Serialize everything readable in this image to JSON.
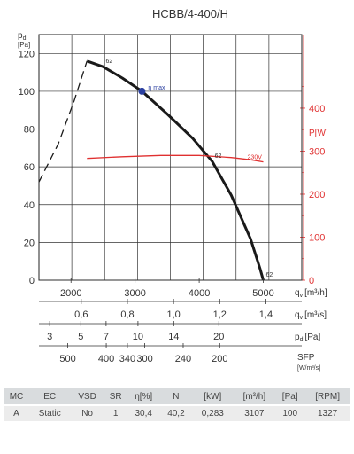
{
  "chart_data": {
    "type": "line",
    "title": "HCBB/4-400/H",
    "ylabel": "p",
    "ylabel_sub": "d",
    "yunit": "[Pa]",
    "ylim": [
      0,
      130
    ],
    "yticks": [
      0,
      20,
      40,
      60,
      80,
      100,
      120
    ],
    "y2label": "P[W]",
    "y2lim": [
      0,
      571
    ],
    "y2ticks": [
      0,
      100,
      200,
      300,
      400
    ],
    "x_qv": {
      "min": 1500,
      "max": 5600,
      "ticks": [
        2000,
        3000,
        4000,
        5000
      ],
      "label": "q",
      "label_sub": "v",
      "unit": "[m³/h]"
    },
    "x_qs": {
      "ticks": [
        "0,6",
        "0,8",
        "1,0",
        "1,2",
        "1,4"
      ],
      "values": [
        0.6,
        0.8,
        1.0,
        1.2,
        1.4
      ],
      "label": "q",
      "label_sub": "v",
      "unit": "[m³/s]"
    },
    "x_pd": {
      "ticks": [
        "3",
        "5",
        "7",
        "10",
        "14",
        "20"
      ],
      "values": [
        3,
        5,
        7,
        10,
        14,
        20
      ],
      "label": "p",
      "label_sub": "d",
      "unit": "[Pa]"
    },
    "x_sfp": {
      "ticks": [
        "500",
        "400",
        "340",
        "300",
        "240",
        "200"
      ],
      "positions": [
        1950,
        2550,
        2880,
        3150,
        3750,
        4320
      ],
      "label": "SFP",
      "unit": "[W/m³/s]"
    },
    "series": [
      {
        "kind": "pressure-dashed",
        "x": [
          1500,
          1800,
          2050,
          2250
        ],
        "y": [
          52,
          72,
          95,
          116
        ]
      },
      {
        "kind": "pressure",
        "x": [
          2250,
          2500,
          2800,
          3107,
          3500,
          3900,
          4200,
          4500,
          4800,
          4950,
          5000
        ],
        "y": [
          116,
          113,
          107,
          100,
          88,
          75,
          63,
          45,
          22,
          6,
          0
        ]
      },
      {
        "kind": "power",
        "name": "230V",
        "x": [
          2250,
          2800,
          3400,
          4000,
          4500,
          4800,
          5000
        ],
        "y": [
          283,
          287,
          290,
          290,
          285,
          280,
          275
        ]
      }
    ],
    "annotations": [
      {
        "text": "η max",
        "x": 3107,
        "y": 100
      },
      {
        "text": "62",
        "x": 2500,
        "y": 113
      },
      {
        "text": "62",
        "x": 4200,
        "y": 63
      },
      {
        "text": "62",
        "x": 5000,
        "y": 0
      }
    ],
    "grid": true
  },
  "table": {
    "headers": [
      "MC",
      "EC",
      "VSD",
      "SR",
      "η[%]",
      "N",
      "[kW]",
      "[m³/h]",
      "[Pa]",
      "[RPM]"
    ],
    "row": [
      "A",
      "Static",
      "No",
      "1",
      "30,4",
      "40,2",
      "0,283",
      "3107",
      "100",
      "1327"
    ]
  },
  "colors": {
    "pressure": "#1a1a1a",
    "power": "#e03030",
    "marker": "#2a3fa0",
    "grid": "#333333"
  }
}
